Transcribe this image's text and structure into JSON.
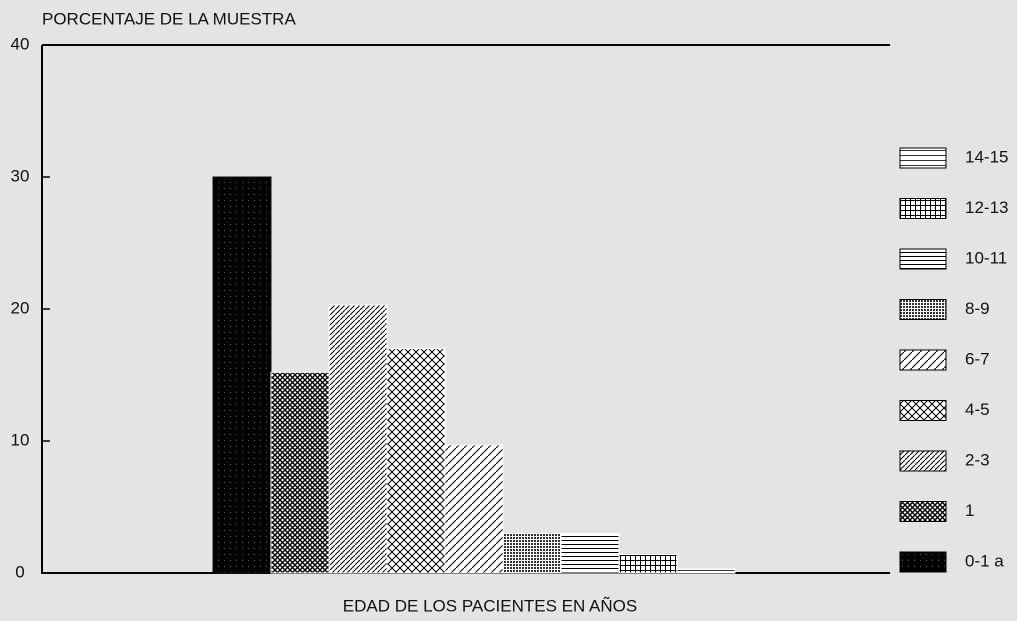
{
  "chart_data": {
    "type": "bar",
    "y_label": "PORCENTAJE DE LA MUESTRA",
    "x_label": "EDAD DE LOS PACIENTES EN AÑOS",
    "categories": [
      "0-1 a",
      "1",
      "2-3",
      "4-5",
      "6-7",
      "8-9",
      "10-11",
      "12-13",
      "14-15"
    ],
    "values": [
      30,
      15.2,
      20.3,
      17,
      9.7,
      3,
      3,
      1.4,
      0.3
    ],
    "ylim": [
      0,
      40
    ],
    "yticks": [
      0,
      10,
      20,
      30,
      40
    ],
    "legend": "right",
    "color": "#111111"
  }
}
